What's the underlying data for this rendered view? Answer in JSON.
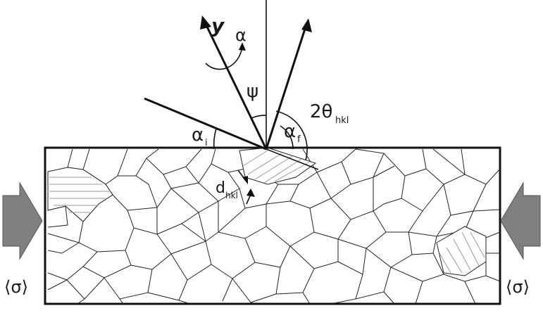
{
  "labels": {
    "y_axis": "y",
    "alpha": "α",
    "psi": "ψ",
    "two_theta_main": "2θ",
    "two_theta_sub": "hkl",
    "alpha_i_main": "α",
    "alpha_i_sub": "i",
    "alpha_f_main": "α",
    "alpha_f_sub": "f",
    "d_main": "d",
    "d_sub": "hkl",
    "stress_left": "⟨σ⟩",
    "stress_right": "⟨σ⟩"
  },
  "colors": {
    "lines": "#111111",
    "arrow_fill": "#808080",
    "hatch": "#9a9a9a"
  }
}
